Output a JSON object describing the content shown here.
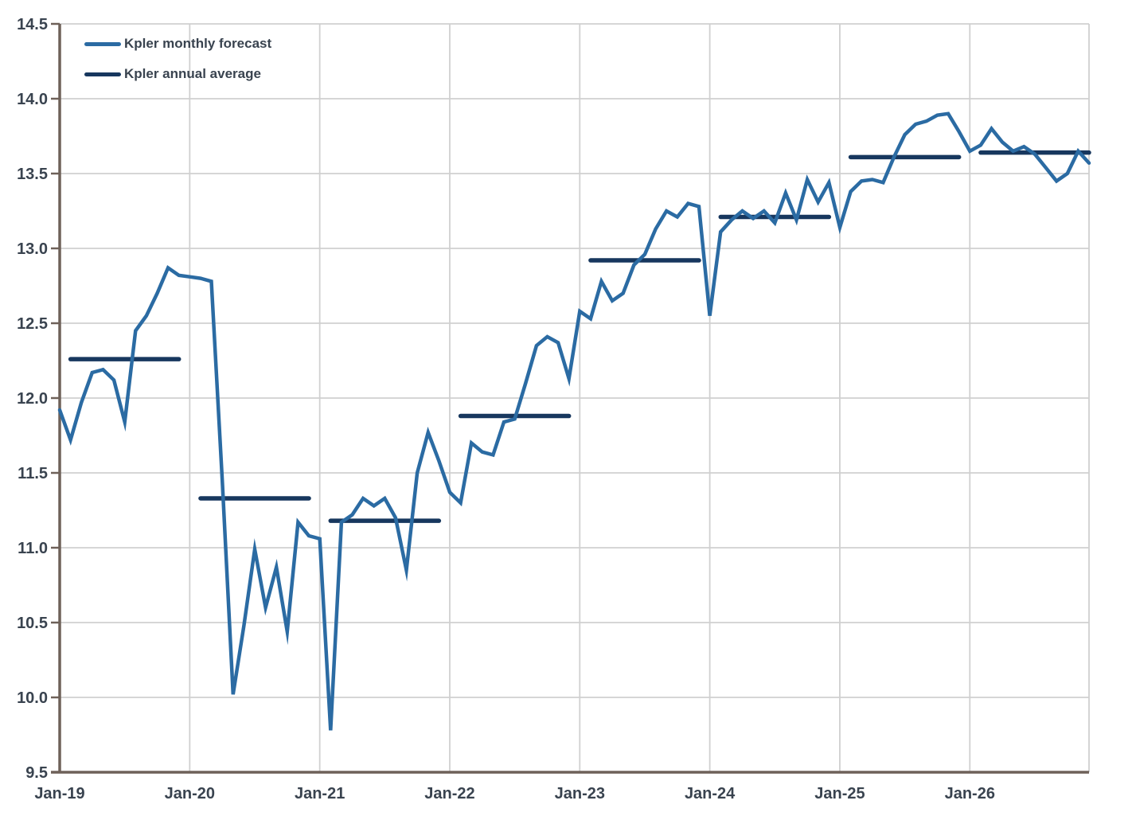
{
  "colors": {
    "monthly_line": "#2b6ba3",
    "annual_line": "#17375e",
    "gridline": "#d0d0d0",
    "axis": "#6e6159",
    "label_text": "#39434f",
    "background": "#ffffff"
  },
  "legend": {
    "items": [
      {
        "label": "Kpler monthly forecast",
        "color": "#2b6ba3"
      },
      {
        "label": "Kpler annual average",
        "color": "#17375e"
      }
    ]
  },
  "axis": {
    "y_tick_labels": [
      "9.5",
      "10.0",
      "10.5",
      "11.0",
      "11.5",
      "12.0",
      "12.5",
      "13.0",
      "13.5",
      "14.0",
      "14.5"
    ],
    "x_tick_labels": [
      "Jan-19",
      "Jan-20",
      "Jan-21",
      "Jan-22",
      "Jan-23",
      "Jan-24",
      "Jan-25",
      "Jan-26"
    ]
  },
  "chart_data": {
    "type": "line",
    "title": "",
    "xlabel": "",
    "ylabel": "",
    "grid": true,
    "legend_position": "top-left",
    "ylim": [
      9.5,
      14.5
    ],
    "y_ticks": [
      9.5,
      10.0,
      10.5,
      11.0,
      11.5,
      12.0,
      12.5,
      13.0,
      13.5,
      14.0,
      14.5
    ],
    "x_start": "Jan-19",
    "x_end": "Dec-26",
    "frequency": "monthly",
    "x_tick_labels": [
      "Jan-19",
      "Jan-20",
      "Jan-21",
      "Jan-22",
      "Jan-23",
      "Jan-24",
      "Jan-25",
      "Jan-26"
    ],
    "series": [
      {
        "name": "Kpler monthly forecast",
        "color": "#2b6ba3",
        "values": [
          11.92,
          11.72,
          11.97,
          12.17,
          12.19,
          12.12,
          11.84,
          12.45,
          12.55,
          12.7,
          12.87,
          12.82,
          12.81,
          12.8,
          12.78,
          11.45,
          10.02,
          10.48,
          10.99,
          10.6,
          10.87,
          10.44,
          11.17,
          11.08,
          11.06,
          9.78,
          11.17,
          11.22,
          11.33,
          11.28,
          11.33,
          11.2,
          10.85,
          11.5,
          11.77,
          11.58,
          11.37,
          11.3,
          11.7,
          11.64,
          11.62,
          11.84,
          11.86,
          12.1,
          12.35,
          12.41,
          12.37,
          12.13,
          12.58,
          12.53,
          12.78,
          12.65,
          12.7,
          12.89,
          12.96,
          13.13,
          13.25,
          13.21,
          13.3,
          13.28,
          12.55,
          13.11,
          13.19,
          13.25,
          13.2,
          13.25,
          13.17,
          13.37,
          13.19,
          13.46,
          13.31,
          13.44,
          13.14,
          13.38,
          13.45,
          13.46,
          13.44,
          13.61,
          13.76,
          13.83,
          13.85,
          13.89,
          13.9,
          13.78,
          13.65,
          13.69,
          13.8,
          13.71,
          13.65,
          13.68,
          13.63,
          13.54,
          13.45,
          13.5,
          13.65,
          13.57
        ]
      },
      {
        "name": "Kpler annual average",
        "color": "#17375e",
        "style": "year-segments",
        "values": [
          {
            "year": "2019",
            "value": 12.26
          },
          {
            "year": "2020",
            "value": 11.33
          },
          {
            "year": "2021",
            "value": 11.18
          },
          {
            "year": "2022",
            "value": 11.88
          },
          {
            "year": "2023",
            "value": 12.92
          },
          {
            "year": "2024",
            "value": 13.21
          },
          {
            "year": "2025",
            "value": 13.61
          },
          {
            "year": "2026",
            "value": 13.64
          }
        ]
      }
    ]
  }
}
